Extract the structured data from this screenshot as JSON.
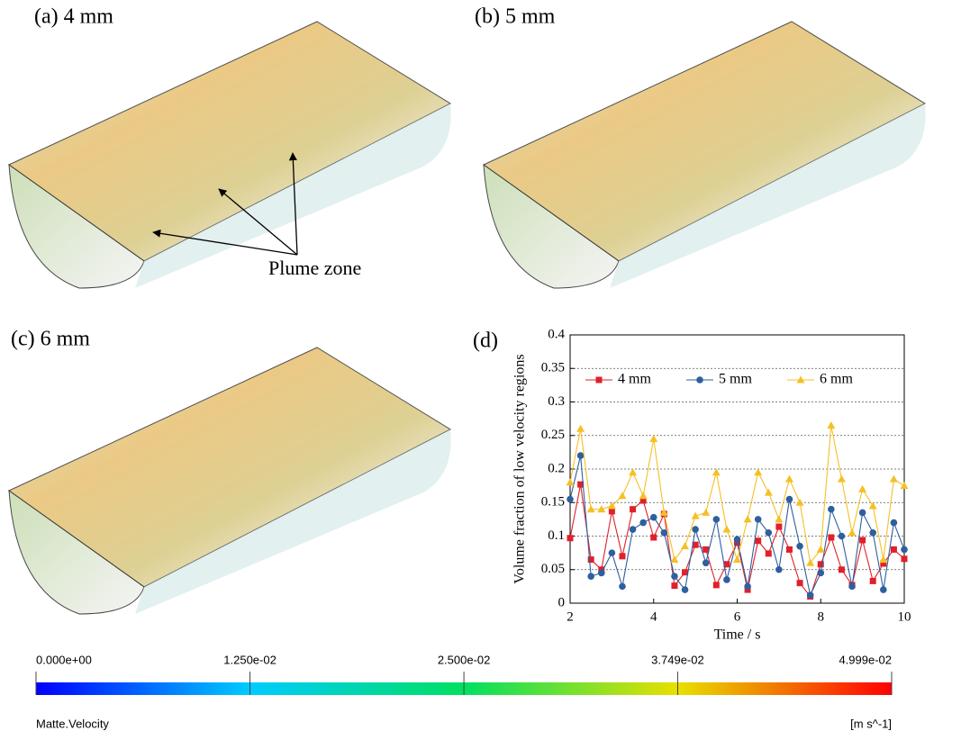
{
  "panels": [
    {
      "label": "(a)  4 mm"
    },
    {
      "label": "(b)  5 mm"
    },
    {
      "label": "(c)  6 mm"
    }
  ],
  "annotation": "Plume zone",
  "chart_data": {
    "type": "line",
    "title": "(d)",
    "x_label": "Time / s",
    "y_label": "Volume fraction of low velocity regions",
    "x": [
      2,
      2.25,
      2.5,
      2.75,
      3,
      3.25,
      3.5,
      3.75,
      4,
      4.25,
      4.5,
      4.75,
      5,
      5.25,
      5.5,
      5.75,
      6,
      6.25,
      6.5,
      6.75,
      7,
      7.25,
      7.5,
      7.75,
      8,
      8.25,
      8.5,
      8.75,
      9,
      9.25,
      9.5,
      9.75,
      10
    ],
    "series": [
      {
        "name": "4 mm",
        "color": "#e0202a",
        "marker": "square",
        "values": [
          0.097,
          0.177,
          0.065,
          0.05,
          0.137,
          0.07,
          0.14,
          0.153,
          0.098,
          0.133,
          0.026,
          0.046,
          0.087,
          0.08,
          0.027,
          0.058,
          0.09,
          0.02,
          0.093,
          0.074,
          0.114,
          0.08,
          0.03,
          0.01,
          0.058,
          0.098,
          0.05,
          0.027,
          0.094,
          0.033,
          0.059,
          0.08,
          0.066
        ]
      },
      {
        "name": "5 mm",
        "color": "#2e5f9e",
        "marker": "circle",
        "values": [
          0.155,
          0.22,
          0.04,
          0.045,
          0.075,
          0.025,
          0.11,
          0.12,
          0.128,
          0.105,
          0.04,
          0.02,
          0.11,
          0.06,
          0.125,
          0.035,
          0.095,
          0.025,
          0.125,
          0.105,
          0.05,
          0.155,
          0.085,
          0.012,
          0.045,
          0.14,
          0.1,
          0.025,
          0.135,
          0.105,
          0.02,
          0.12,
          0.08
        ]
      },
      {
        "name": "6 mm",
        "color": "#f5c025",
        "marker": "triangle",
        "values": [
          0.18,
          0.26,
          0.14,
          0.14,
          0.145,
          0.16,
          0.195,
          0.16,
          0.245,
          0.135,
          0.065,
          0.085,
          0.13,
          0.135,
          0.195,
          0.11,
          0.065,
          0.125,
          0.195,
          0.165,
          0.125,
          0.185,
          0.15,
          0.06,
          0.08,
          0.265,
          0.185,
          0.105,
          0.17,
          0.145,
          0.065,
          0.185,
          0.175
        ]
      }
    ],
    "xlim": [
      2,
      10
    ],
    "xticks": [
      2,
      4,
      6,
      8,
      10
    ],
    "ylim": [
      0,
      0.4
    ],
    "yticks": [
      0,
      0.05,
      0.1,
      0.15,
      0.2,
      0.25,
      0.3,
      0.35,
      0.4
    ],
    "grid": true,
    "legend": "upper center"
  },
  "colorbar": {
    "label": "Matte.Velocity",
    "unit": "[m s^-1]",
    "ticks": [
      {
        "value": 0,
        "label": "0.000e+00"
      },
      {
        "value": 0.0125,
        "label": "1.250e-02"
      },
      {
        "value": 0.025,
        "label": "2.500e-02"
      },
      {
        "value": 0.03749,
        "label": "3.749e-02"
      },
      {
        "value": 0.04999,
        "label": "4.999e-02"
      }
    ]
  }
}
